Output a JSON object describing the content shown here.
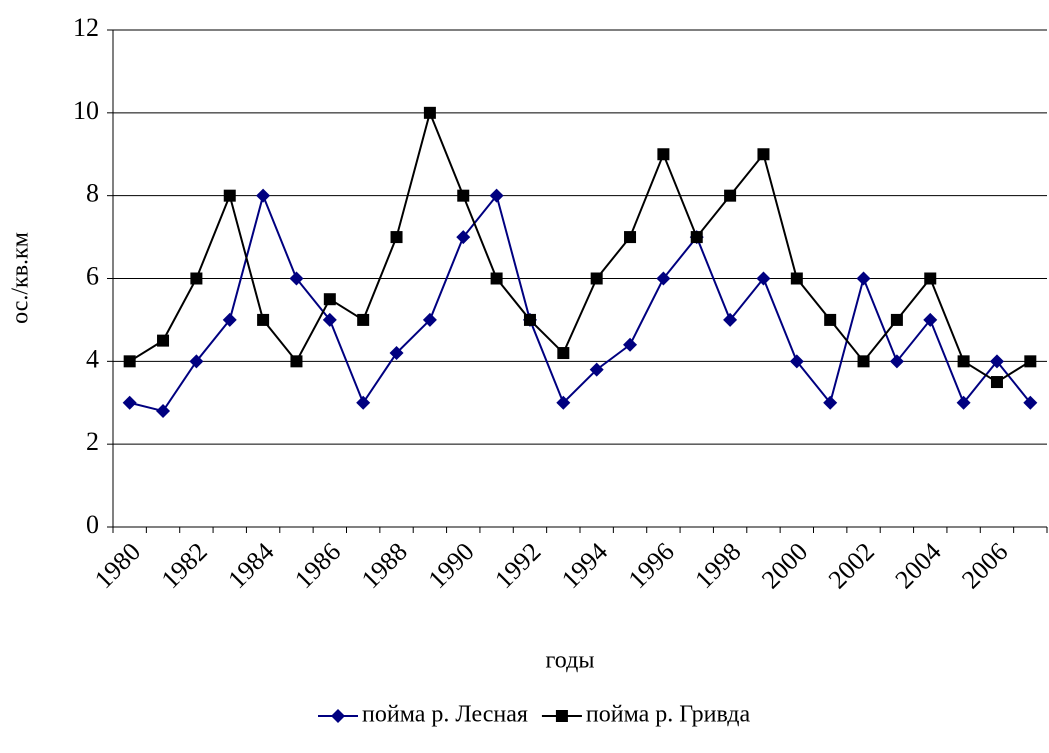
{
  "chart_data": {
    "type": "line",
    "x_label": "годы",
    "y_label": "ос./кв.км",
    "categories": [
      "1980",
      null,
      "1982",
      null,
      "1984",
      null,
      "1986",
      null,
      "1988",
      null,
      "1990",
      null,
      "1992",
      null,
      "1994",
      null,
      "1996",
      null,
      "1998",
      null,
      "2000",
      null,
      "2002",
      null,
      "2004",
      null,
      "2006",
      null
    ],
    "series": [
      {
        "name": "пойма р. Лесная",
        "color": "#000080",
        "marker": "diamond",
        "values": [
          3,
          2.8,
          4,
          5,
          8,
          6,
          5,
          3,
          4.2,
          5,
          7,
          8,
          5,
          3,
          3.8,
          4.4,
          6,
          7,
          5,
          6,
          4,
          3,
          6,
          4,
          5,
          3,
          4,
          3
        ]
      },
      {
        "name": "пойма р. Гривда",
        "color": "#000000",
        "marker": "square",
        "values": [
          4,
          4.5,
          6,
          8,
          5,
          4,
          5.5,
          5,
          7,
          10,
          8,
          6,
          5,
          4.2,
          6,
          7,
          9,
          7,
          8,
          9,
          6,
          5,
          4,
          5,
          6,
          4,
          3.5,
          4
        ]
      }
    ],
    "ylim": [
      0,
      12
    ],
    "yticks": [
      0,
      2,
      4,
      6,
      8,
      10,
      12
    ],
    "grid": true,
    "legend": "bottom"
  }
}
